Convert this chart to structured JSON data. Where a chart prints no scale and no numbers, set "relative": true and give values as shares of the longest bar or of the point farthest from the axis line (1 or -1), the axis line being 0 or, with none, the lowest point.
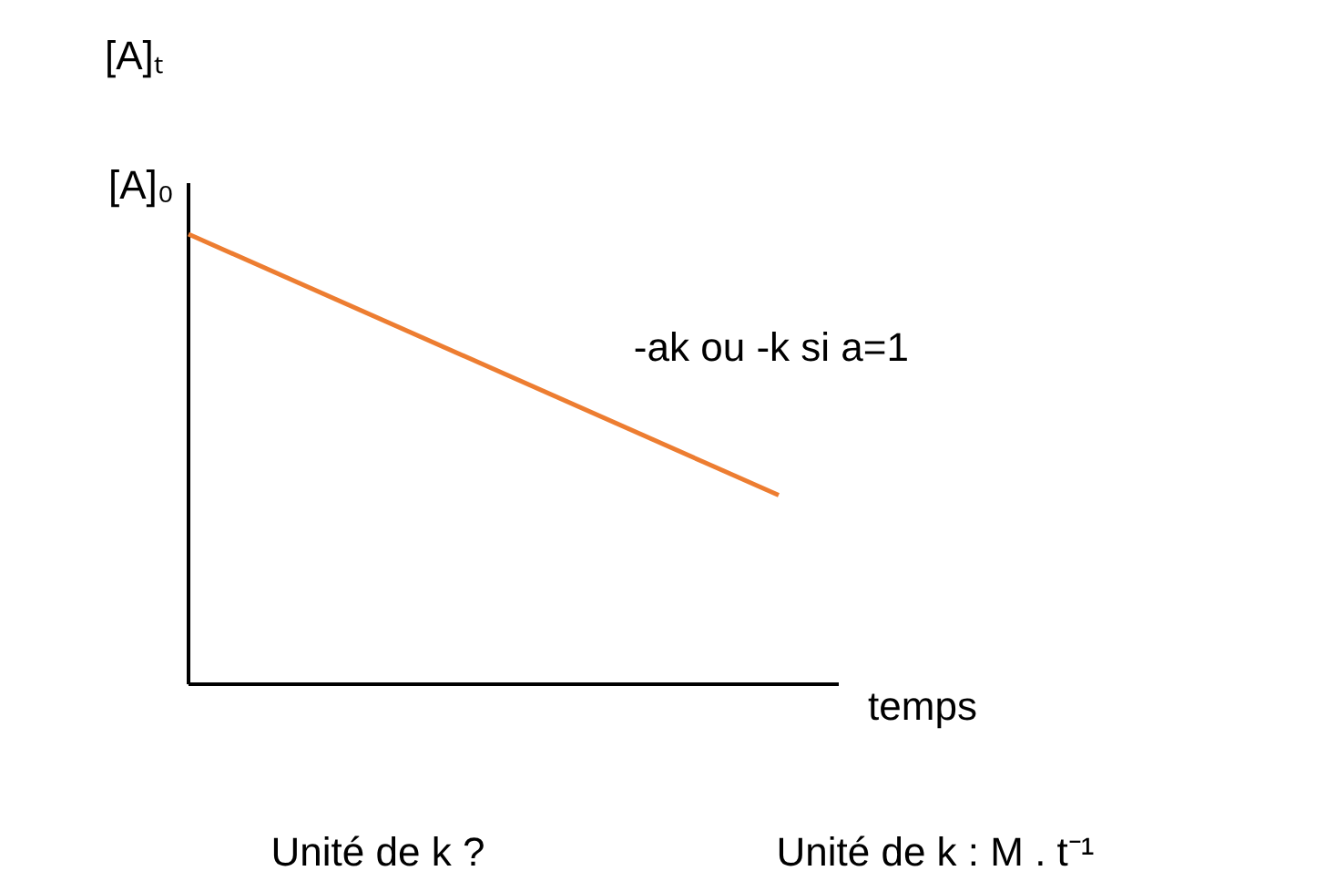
{
  "chart_data": {
    "type": "line",
    "relative": true,
    "ylabel": "[A]ₜ",
    "xlabel": "temps",
    "categories": [
      null,
      null
    ],
    "series": [
      {
        "color": "#ed7d31",
        "values": [
          1,
          0.42
        ]
      }
    ],
    "grid": false,
    "legend": false,
    "marker": "none",
    "line_style": "solid",
    "annotations": [
      "[A]₀",
      "-ak ou  -k si a=1",
      "Unité de k ?",
      "Unité de k : M . t⁻¹"
    ]
  }
}
